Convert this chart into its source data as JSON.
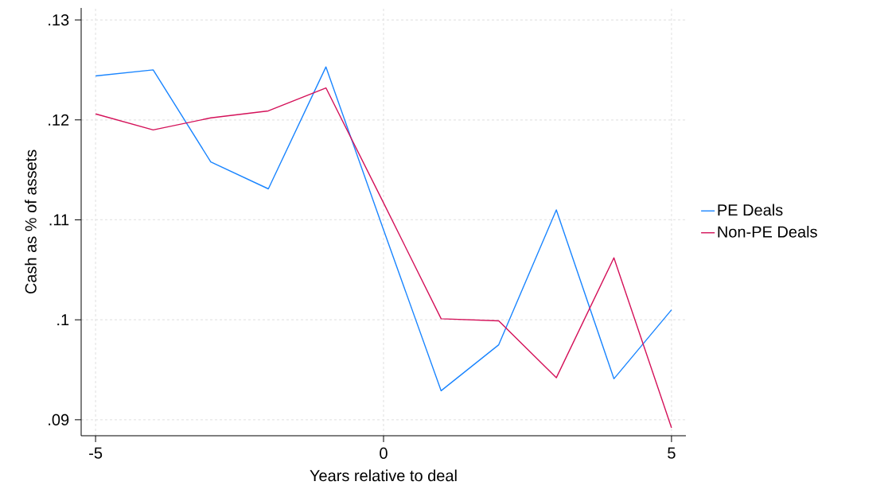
{
  "chart_data": {
    "type": "line",
    "xlabel": "Years relative to deal",
    "ylabel": "Cash as % of assets",
    "x": [
      -5,
      -4,
      -3,
      -2,
      -1,
      0,
      1,
      2,
      3,
      4,
      5
    ],
    "series": [
      {
        "name": "PE Deals",
        "color": "#1a85ff",
        "values": [
          0.1244,
          0.125,
          0.1158,
          0.1131,
          0.1253,
          0.109,
          0.0929,
          0.0975,
          0.111,
          0.0941,
          0.101
        ]
      },
      {
        "name": "Non-PE Deals",
        "color": "#d41159",
        "values": [
          0.1206,
          0.119,
          0.1202,
          0.1209,
          0.1232,
          0.1117,
          0.1001,
          0.0999,
          0.0942,
          0.1062,
          0.0892
        ]
      }
    ],
    "xlim": [
      -5.25,
      5.25
    ],
    "ylim": [
      0.0884,
      0.1312
    ],
    "xticks": [
      -5,
      0,
      5
    ],
    "yticks": [
      {
        "value": 0.09,
        "label": ".09"
      },
      {
        "value": 0.1,
        "label": ".1"
      },
      {
        "value": 0.11,
        "label": ".11"
      },
      {
        "value": 0.12,
        "label": ".12"
      },
      {
        "value": 0.13,
        "label": ".13"
      }
    ],
    "grid": true,
    "legend": "right",
    "marker": "none",
    "line_style": "solid"
  }
}
